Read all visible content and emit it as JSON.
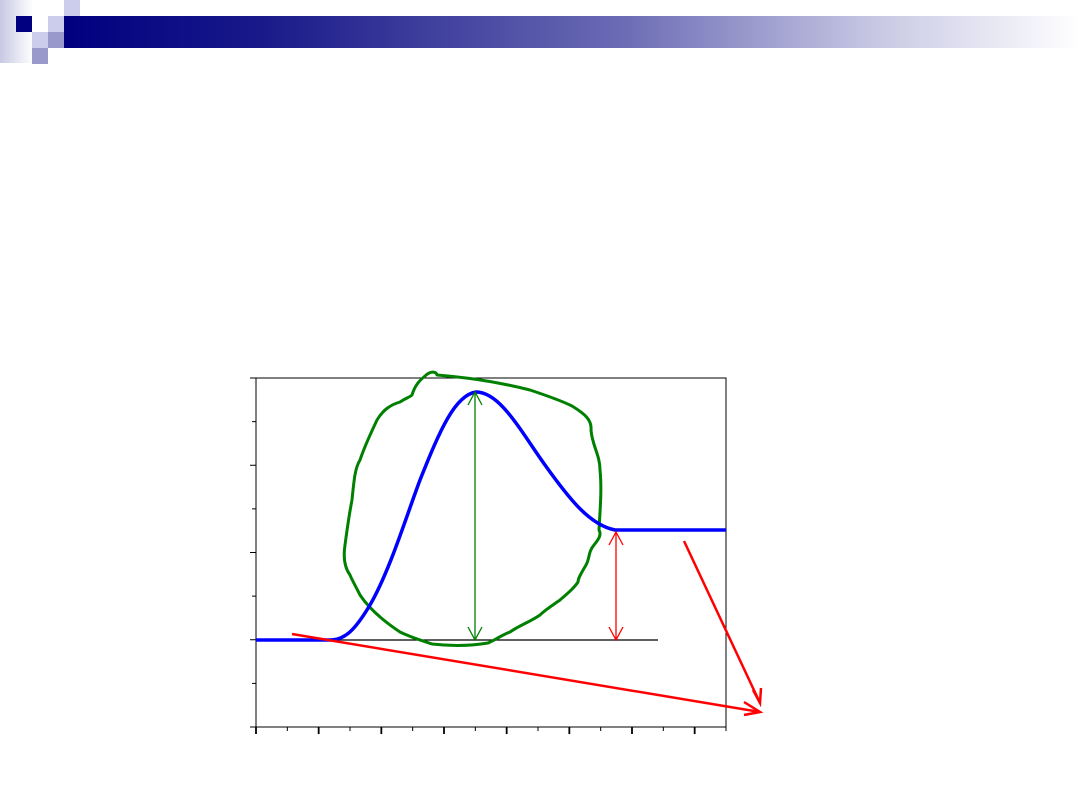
{
  "colors": {
    "banner_start": "#000080",
    "banner_end": "#ffffff",
    "curve": "#0000ff",
    "outline": "#008000",
    "arrows_red": "#ff0000",
    "arrow_green": "#008000",
    "axis": "#000000"
  },
  "icons": [
    "decorative-squares",
    "double-arrow",
    "arrow"
  ]
}
